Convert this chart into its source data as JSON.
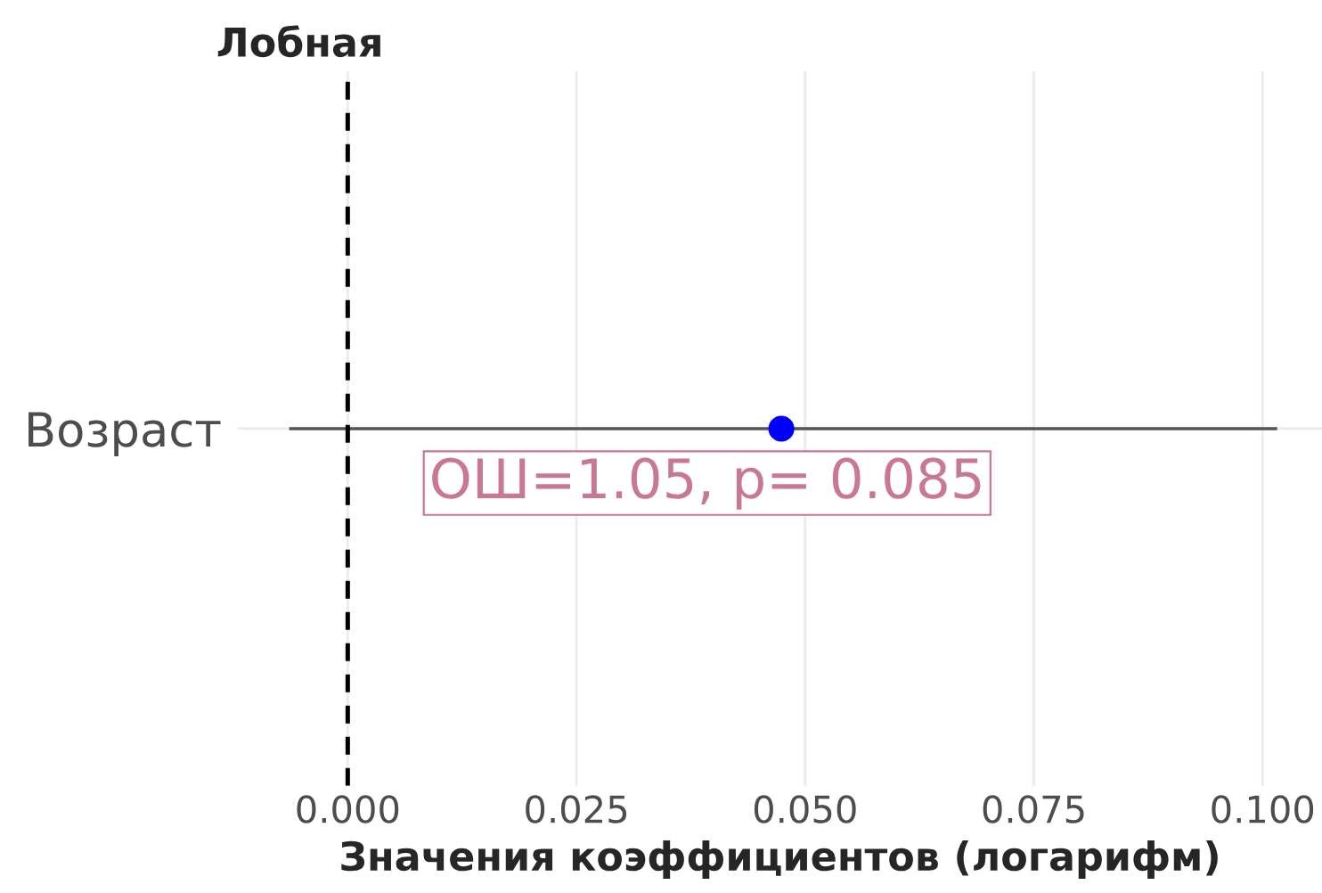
{
  "chart_data": {
    "type": "scatter",
    "orientation": "horizontal",
    "title": "Лобная",
    "xlabel": "Значения коэффициентов (логарифм)",
    "categories": [
      "Возраст"
    ],
    "values": [
      0.0474
    ],
    "errors": [
      [
        -0.0064,
        0.1016
      ]
    ],
    "colors": [
      "#0000ff"
    ],
    "xlim": [
      -0.012,
      0.1065
    ],
    "xticks": [
      {
        "value": 0,
        "label": "0.000"
      },
      0.025,
      {
        "value": 0.05,
        "label": "0.050"
      },
      0.075,
      {
        "value": 0.1,
        "label": "0.100"
      }
    ],
    "ref_lines": [
      {
        "axis": "x",
        "value": 0,
        "color": "#000000",
        "line_style": "dashed"
      }
    ],
    "annotations": [
      "ОШ=1.05, p= 0.085"
    ],
    "grid": true
  }
}
